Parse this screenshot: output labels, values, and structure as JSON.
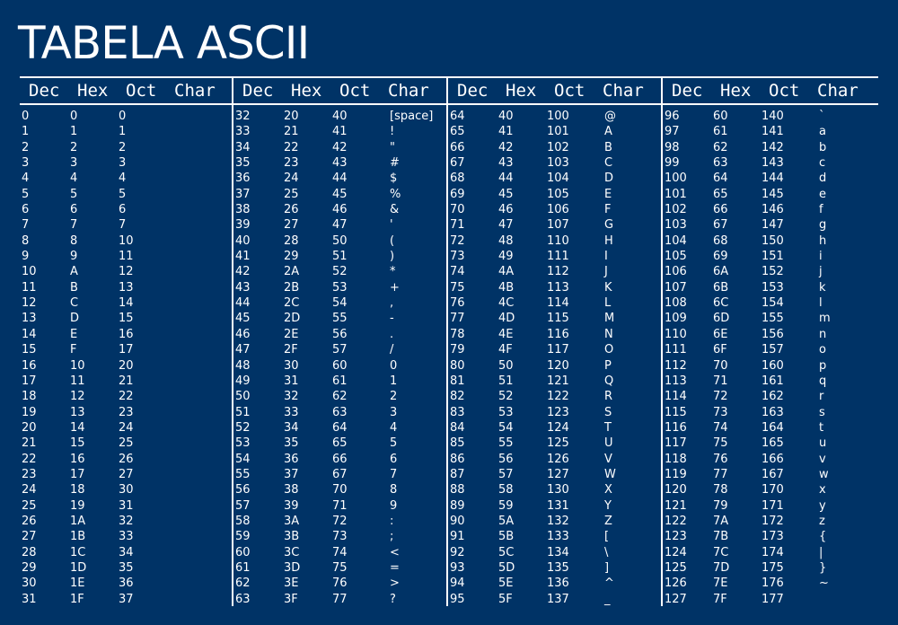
{
  "title": "TABELA ASCII",
  "headers": [
    "Dec",
    "Hex",
    "Oct",
    "Char"
  ],
  "blocks": [
    [
      [
        "0",
        "0",
        "0",
        ""
      ],
      [
        "1",
        "1",
        "1",
        ""
      ],
      [
        "2",
        "2",
        "2",
        ""
      ],
      [
        "3",
        "3",
        "3",
        ""
      ],
      [
        "4",
        "4",
        "4",
        ""
      ],
      [
        "5",
        "5",
        "5",
        ""
      ],
      [
        "6",
        "6",
        "6",
        ""
      ],
      [
        "7",
        "7",
        "7",
        ""
      ],
      [
        "8",
        "8",
        "10",
        ""
      ],
      [
        "9",
        "9",
        "11",
        ""
      ],
      [
        "10",
        "A",
        "12",
        ""
      ],
      [
        "11",
        "B",
        "13",
        ""
      ],
      [
        "12",
        "C",
        "14",
        ""
      ],
      [
        "13",
        "D",
        "15",
        ""
      ],
      [
        "14",
        "E",
        "16",
        ""
      ],
      [
        "15",
        "F",
        "17",
        ""
      ],
      [
        "16",
        "10",
        "20",
        ""
      ],
      [
        "17",
        "11",
        "21",
        ""
      ],
      [
        "18",
        "12",
        "22",
        ""
      ],
      [
        "19",
        "13",
        "23",
        ""
      ],
      [
        "20",
        "14",
        "24",
        ""
      ],
      [
        "21",
        "15",
        "25",
        ""
      ],
      [
        "22",
        "16",
        "26",
        ""
      ],
      [
        "23",
        "17",
        "27",
        ""
      ],
      [
        "24",
        "18",
        "30",
        ""
      ],
      [
        "25",
        "19",
        "31",
        ""
      ],
      [
        "26",
        "1A",
        "32",
        ""
      ],
      [
        "27",
        "1B",
        "33",
        ""
      ],
      [
        "28",
        "1C",
        "34",
        ""
      ],
      [
        "29",
        "1D",
        "35",
        ""
      ],
      [
        "30",
        "1E",
        "36",
        ""
      ],
      [
        "31",
        "1F",
        "37",
        ""
      ]
    ],
    [
      [
        "32",
        "20",
        "40",
        "[space]"
      ],
      [
        "33",
        "21",
        "41",
        "!"
      ],
      [
        "34",
        "22",
        "42",
        "\""
      ],
      [
        "35",
        "23",
        "43",
        "#"
      ],
      [
        "36",
        "24",
        "44",
        "$"
      ],
      [
        "37",
        "25",
        "45",
        "%"
      ],
      [
        "38",
        "26",
        "46",
        "&"
      ],
      [
        "39",
        "27",
        "47",
        "'"
      ],
      [
        "40",
        "28",
        "50",
        "("
      ],
      [
        "41",
        "29",
        "51",
        ")"
      ],
      [
        "42",
        "2A",
        "52",
        "*"
      ],
      [
        "43",
        "2B",
        "53",
        "+"
      ],
      [
        "44",
        "2C",
        "54",
        ","
      ],
      [
        "45",
        "2D",
        "55",
        "-"
      ],
      [
        "46",
        "2E",
        "56",
        "."
      ],
      [
        "47",
        "2F",
        "57",
        "/"
      ],
      [
        "48",
        "30",
        "60",
        "0"
      ],
      [
        "49",
        "31",
        "61",
        "1"
      ],
      [
        "50",
        "32",
        "62",
        "2"
      ],
      [
        "51",
        "33",
        "63",
        "3"
      ],
      [
        "52",
        "34",
        "64",
        "4"
      ],
      [
        "53",
        "35",
        "65",
        "5"
      ],
      [
        "54",
        "36",
        "66",
        "6"
      ],
      [
        "55",
        "37",
        "67",
        "7"
      ],
      [
        "56",
        "38",
        "70",
        "8"
      ],
      [
        "57",
        "39",
        "71",
        "9"
      ],
      [
        "58",
        "3A",
        "72",
        ":"
      ],
      [
        "59",
        "3B",
        "73",
        ";"
      ],
      [
        "60",
        "3C",
        "74",
        "<"
      ],
      [
        "61",
        "3D",
        "75",
        "="
      ],
      [
        "62",
        "3E",
        "76",
        ">"
      ],
      [
        "63",
        "3F",
        "77",
        "?"
      ]
    ],
    [
      [
        "64",
        "40",
        "100",
        "@"
      ],
      [
        "65",
        "41",
        "101",
        "A"
      ],
      [
        "66",
        "42",
        "102",
        "B"
      ],
      [
        "67",
        "43",
        "103",
        "C"
      ],
      [
        "68",
        "44",
        "104",
        "D"
      ],
      [
        "69",
        "45",
        "105",
        "E"
      ],
      [
        "70",
        "46",
        "106",
        "F"
      ],
      [
        "71",
        "47",
        "107",
        "G"
      ],
      [
        "72",
        "48",
        "110",
        "H"
      ],
      [
        "73",
        "49",
        "111",
        "I"
      ],
      [
        "74",
        "4A",
        "112",
        "J"
      ],
      [
        "75",
        "4B",
        "113",
        "K"
      ],
      [
        "76",
        "4C",
        "114",
        "L"
      ],
      [
        "77",
        "4D",
        "115",
        "M"
      ],
      [
        "78",
        "4E",
        "116",
        "N"
      ],
      [
        "79",
        "4F",
        "117",
        "O"
      ],
      [
        "80",
        "50",
        "120",
        "P"
      ],
      [
        "81",
        "51",
        "121",
        "Q"
      ],
      [
        "82",
        "52",
        "122",
        "R"
      ],
      [
        "83",
        "53",
        "123",
        "S"
      ],
      [
        "84",
        "54",
        "124",
        "T"
      ],
      [
        "85",
        "55",
        "125",
        "U"
      ],
      [
        "86",
        "56",
        "126",
        "V"
      ],
      [
        "87",
        "57",
        "127",
        "W"
      ],
      [
        "88",
        "58",
        "130",
        "X"
      ],
      [
        "89",
        "59",
        "131",
        "Y"
      ],
      [
        "90",
        "5A",
        "132",
        "Z"
      ],
      [
        "91",
        "5B",
        "133",
        "["
      ],
      [
        "92",
        "5C",
        "134",
        "\\"
      ],
      [
        "93",
        "5D",
        "135",
        "]"
      ],
      [
        "94",
        "5E",
        "136",
        "^"
      ],
      [
        "95",
        "5F",
        "137",
        "_"
      ]
    ],
    [
      [
        "96",
        "60",
        "140",
        "`"
      ],
      [
        "97",
        "61",
        "141",
        "a"
      ],
      [
        "98",
        "62",
        "142",
        "b"
      ],
      [
        "99",
        "63",
        "143",
        "c"
      ],
      [
        "100",
        "64",
        "144",
        "d"
      ],
      [
        "101",
        "65",
        "145",
        "e"
      ],
      [
        "102",
        "66",
        "146",
        "f"
      ],
      [
        "103",
        "67",
        "147",
        "g"
      ],
      [
        "104",
        "68",
        "150",
        "h"
      ],
      [
        "105",
        "69",
        "151",
        "i"
      ],
      [
        "106",
        "6A",
        "152",
        "j"
      ],
      [
        "107",
        "6B",
        "153",
        "k"
      ],
      [
        "108",
        "6C",
        "154",
        "l"
      ],
      [
        "109",
        "6D",
        "155",
        "m"
      ],
      [
        "110",
        "6E",
        "156",
        "n"
      ],
      [
        "111",
        "6F",
        "157",
        "o"
      ],
      [
        "112",
        "70",
        "160",
        "p"
      ],
      [
        "113",
        "71",
        "161",
        "q"
      ],
      [
        "114",
        "72",
        "162",
        "r"
      ],
      [
        "115",
        "73",
        "163",
        "s"
      ],
      [
        "116",
        "74",
        "164",
        "t"
      ],
      [
        "117",
        "75",
        "165",
        "u"
      ],
      [
        "118",
        "76",
        "166",
        "v"
      ],
      [
        "119",
        "77",
        "167",
        "w"
      ],
      [
        "120",
        "78",
        "170",
        "x"
      ],
      [
        "121",
        "79",
        "171",
        "y"
      ],
      [
        "122",
        "7A",
        "172",
        "z"
      ],
      [
        "123",
        "7B",
        "173",
        "{"
      ],
      [
        "124",
        "7C",
        "174",
        "|"
      ],
      [
        "125",
        "7D",
        "175",
        "}"
      ],
      [
        "126",
        "7E",
        "176",
        "~"
      ],
      [
        "127",
        "7F",
        "177",
        ""
      ]
    ]
  ],
  "colors": {
    "background": "#003366",
    "text": "#ffffff",
    "rule": "#ffffff"
  }
}
